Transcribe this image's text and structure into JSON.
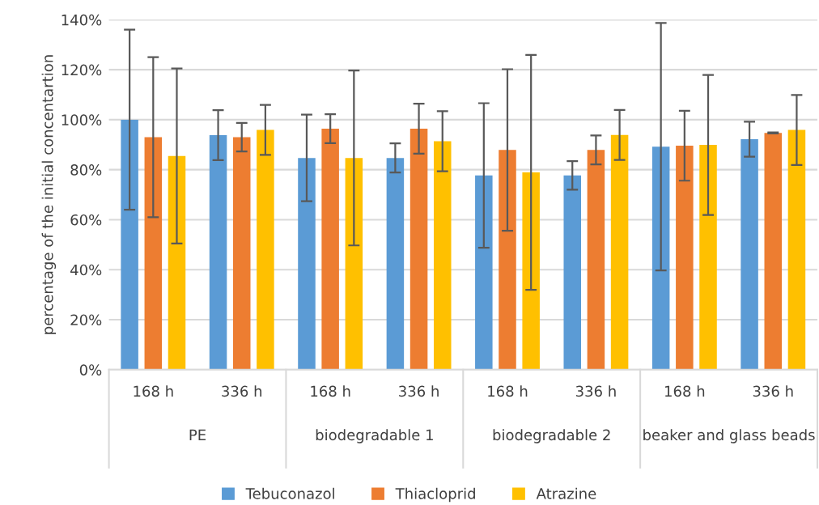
{
  "chart_data": {
    "type": "bar",
    "ylabel": "percentage of the initial concentartion",
    "categories": [
      "168 h",
      "336 h",
      "168 h",
      "336 h",
      "168 h",
      "336 h",
      "168 h",
      "336 h"
    ],
    "annotations": [
      "PE",
      "biodegradable 1",
      "biodegradable 2",
      "beaker and glass beads"
    ],
    "series": [
      {
        "name": "Tebuconazol",
        "color": "#5b9bd5",
        "values": [
          100,
          93.8,
          84.7,
          84.7,
          77.7,
          77.7,
          89.2,
          92.2
        ],
        "errors": [
          36,
          10,
          17.3,
          5.8,
          28.9,
          5.7,
          49.5,
          7
        ]
      },
      {
        "name": "Thiacloprid",
        "color": "#ed7d31",
        "values": [
          93,
          93,
          96.4,
          96.4,
          87.9,
          87.9,
          89.6,
          94.7
        ],
        "errors": [
          32,
          5.7,
          5.8,
          10,
          32.3,
          5.8,
          14,
          0.2
        ]
      },
      {
        "name": "Atrazine",
        "color": "#ffc000",
        "values": [
          85.5,
          95.9,
          84.7,
          91.4,
          78.9,
          93.9,
          89.9,
          95.9
        ],
        "errors": [
          35,
          10,
          35,
          12,
          47,
          10,
          28,
          14
        ]
      }
    ],
    "ylim": [
      0,
      140
    ],
    "yticks": [
      {
        "value": 0,
        "label": "0%"
      },
      {
        "value": 20,
        "label": "20%"
      },
      {
        "value": 40,
        "label": "40%"
      },
      {
        "value": 60,
        "label": "60%"
      },
      {
        "value": 80,
        "label": "80%"
      },
      {
        "value": 100,
        "label": "100%"
      },
      {
        "value": 120,
        "label": "120%"
      },
      {
        "value": 140,
        "label": "140%"
      }
    ],
    "grid": "y",
    "legend": "bottom"
  }
}
